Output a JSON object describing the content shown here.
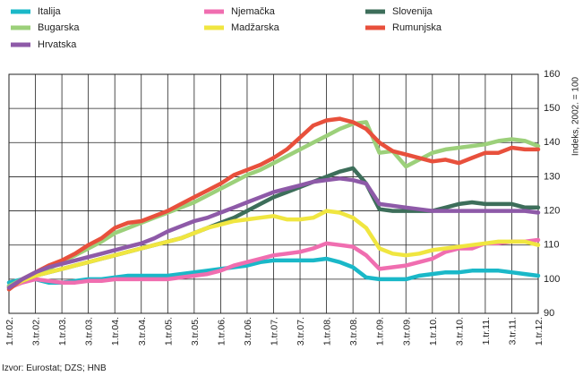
{
  "chart_data": {
    "type": "line",
    "categories": [
      "1.tr.02.",
      null,
      "3.tr.02.",
      null,
      "1.tr.03.",
      null,
      "3.tr.03.",
      null,
      "1.tr.04.",
      null,
      "3.tr.04.",
      null,
      "1.tr.05.",
      null,
      "3.tr.05.",
      null,
      "1.tr.06.",
      null,
      "3.tr.06.",
      null,
      "1.tr.07.",
      null,
      "3.tr.07.",
      null,
      "1.tr.08.",
      null,
      "3.tr.08.",
      null,
      "1.tr.09.",
      null,
      "3.tr.09.",
      null,
      "1.tr.10.",
      null,
      "3.tr.10.",
      null,
      "1.tr.11.",
      null,
      "3.tr.11.",
      null,
      "1.tr.12."
    ],
    "series": [
      {
        "name": "Italija",
        "color": "#1ab8c8",
        "values": [
          99,
          100,
          100,
          99,
          99,
          99.5,
          100,
          100,
          100.5,
          101,
          101,
          101,
          101,
          101.5,
          102,
          102.5,
          103,
          103.5,
          104,
          105,
          105.5,
          105.5,
          105.5,
          105.5,
          106,
          105,
          103.5,
          100.5,
          100,
          100,
          100,
          101,
          101.5,
          102,
          102,
          102.5,
          102.5,
          102.5,
          102,
          101.5,
          101
        ]
      },
      {
        "name": "Njemačka",
        "color": "#f06eb0",
        "values": [
          97.5,
          99,
          100,
          99.5,
          99,
          99,
          99.5,
          99.5,
          100,
          100,
          100,
          100,
          100,
          100.5,
          101,
          101.5,
          102.5,
          104,
          105,
          106,
          107,
          107.5,
          108,
          109,
          110.5,
          110,
          109.5,
          107,
          103,
          103.5,
          104,
          105,
          106,
          108,
          109,
          109,
          110.5,
          110.5,
          111,
          111,
          111.5
        ]
      },
      {
        "name": "Slovenija",
        "color": "#3d6e5a",
        "values": [
          98,
          99.5,
          101,
          102,
          103,
          104,
          105,
          106,
          107,
          108,
          109,
          110,
          111,
          112,
          113.5,
          115,
          116.5,
          118,
          120,
          122,
          124,
          125.5,
          127,
          128.5,
          130,
          131.5,
          132.5,
          128,
          120.5,
          120,
          120,
          120,
          120,
          121,
          122,
          122.5,
          122,
          122,
          122,
          121,
          121
        ]
      },
      {
        "name": "Bugarska",
        "color": "#9cd07a",
        "values": [
          98,
          100,
          101.5,
          103,
          105,
          107,
          109,
          111,
          113.5,
          115,
          116.5,
          118,
          119.5,
          121,
          122.5,
          124.5,
          126.5,
          128.5,
          130.5,
          132,
          134,
          136,
          138,
          140,
          142,
          144,
          145.5,
          146,
          137,
          137.5,
          133,
          135,
          137,
          138,
          138.5,
          139,
          139.5,
          140.5,
          141,
          140.5,
          139
        ]
      },
      {
        "name": "Madžarska",
        "color": "#f0e640",
        "values": [
          97.5,
          99.5,
          101,
          102,
          103,
          104,
          105,
          106,
          107,
          108,
          109,
          110,
          111,
          112,
          113.5,
          115,
          116,
          117,
          117.5,
          118,
          118.5,
          117.5,
          117.5,
          118,
          120,
          119.5,
          118,
          115,
          109,
          107.5,
          107,
          107.5,
          108.5,
          109,
          109.5,
          110,
          110.5,
          111,
          111,
          111,
          110
        ]
      },
      {
        "name": "Rumunjska",
        "color": "#e8503c",
        "values": [
          97,
          100,
          102,
          104,
          105.5,
          107.5,
          110,
          112,
          115,
          116.5,
          117,
          118.5,
          120,
          122,
          124,
          126,
          128,
          130.5,
          132,
          133.5,
          135.5,
          138,
          141.5,
          145,
          146.5,
          147,
          146,
          144,
          140,
          137.5,
          136.5,
          135.5,
          134.5,
          135,
          134,
          135.5,
          137,
          137,
          138.5,
          138,
          138
        ]
      },
      {
        "name": "Hrvatska",
        "color": "#8e5aa8",
        "values": [
          97.5,
          100,
          102,
          103.5,
          104.5,
          105.5,
          106.5,
          107.5,
          108.5,
          109.5,
          110.5,
          112,
          114,
          115.5,
          117,
          118,
          119.5,
          121,
          122.5,
          124,
          125.5,
          126.5,
          127.5,
          128.5,
          129,
          129.5,
          129,
          128,
          122,
          121.5,
          121,
          120.5,
          120,
          120,
          120,
          120,
          120,
          120,
          120,
          120,
          119.5
        ]
      }
    ],
    "ylim": [
      90,
      160
    ],
    "yticks": [
      90,
      100,
      110,
      120,
      130,
      140,
      150,
      160
    ],
    "ylabel": "Indeks, 2002. = 100",
    "source": "Izvor: Eurostat; DZS; HNB",
    "grid": true
  }
}
